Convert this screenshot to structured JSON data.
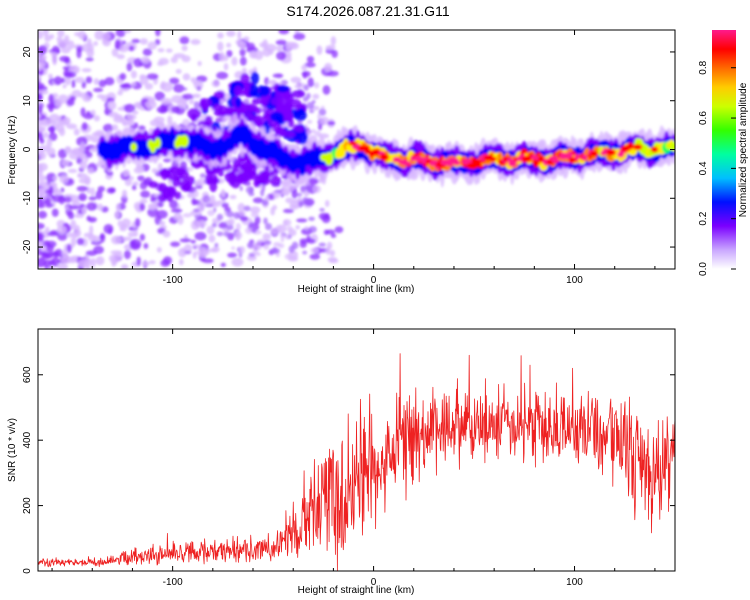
{
  "title": "S174.2026.087.21.31.G11",
  "colors": {
    "snr_line": "#ee2222",
    "spectro_strong": "#ff1a1a",
    "spectro_mid": "#33dd33",
    "spectro_low": "#6a00ff",
    "spectro_faint": "#d8b8ff"
  },
  "chart_data": [
    {
      "type": "heatmap",
      "name": "spectrogram",
      "xlabel": "Height of straight line (km)",
      "ylabel": "Frequency (Hz)",
      "xlim": [
        -167,
        150
      ],
      "ylim": [
        -24.5,
        24.5
      ],
      "x_ticks": [
        -100,
        0,
        100
      ],
      "y_ticks": [
        -20,
        -10,
        0,
        10,
        20
      ],
      "x_tick_labels": [
        "-100",
        "0",
        "100"
      ],
      "y_tick_labels": [
        "-20",
        "-10",
        "0",
        "10",
        "20"
      ],
      "colorbar": {
        "label": "Normalized spectral amplitude",
        "range": [
          0,
          0.95
        ],
        "ticks": [
          0.0,
          0.2,
          0.4,
          0.6,
          0.8
        ],
        "tick_labels": [
          "0.0",
          "0.2",
          "0.4",
          "0.6",
          "0.8"
        ],
        "colormap": [
          "#ffffff",
          "#7a00ff",
          "#0000ff",
          "#00ccff",
          "#00ff66",
          "#ccff00",
          "#ffee00",
          "#ff8800",
          "#ff0000",
          "#ff1a8c"
        ]
      },
      "ridge": {
        "x": [
          -130,
          -110,
          -95,
          -80,
          -65,
          -50,
          -35,
          -20,
          -10,
          -5,
          0,
          10,
          20,
          30,
          40,
          50,
          60,
          70,
          80,
          90,
          100,
          110,
          120,
          130,
          140,
          150
        ],
        "freq": [
          0,
          1,
          2,
          0,
          3,
          -1,
          -3,
          -1,
          0.5,
          1,
          -1,
          -2,
          -2,
          -2.5,
          -3,
          -2.5,
          -2,
          -2,
          -2,
          -2,
          -1.5,
          -1,
          -0.5,
          0,
          0,
          0.5
        ],
        "amplitude": [
          0.35,
          0.45,
          0.4,
          0.35,
          0.3,
          0.3,
          0.35,
          0.5,
          0.75,
          0.85,
          0.7,
          0.8,
          0.85,
          0.9,
          0.85,
          0.8,
          0.75,
          0.8,
          0.85,
          0.8,
          0.8,
          0.75,
          0.7,
          0.65,
          0.6,
          0.55
        ]
      }
    },
    {
      "type": "line",
      "name": "snr",
      "xlabel": "Height of straight line (km)",
      "ylabel": "SNR (10 * v/v)",
      "xlim": [
        -167,
        150
      ],
      "ylim": [
        0,
        740
      ],
      "x_ticks": [
        -100,
        0,
        100
      ],
      "y_ticks": [
        0,
        200,
        400,
        600
      ],
      "x_tick_labels": [
        "-100",
        "0",
        "100"
      ],
      "y_tick_labels": [
        "0",
        "200",
        "400",
        "600"
      ],
      "envelope": {
        "x": [
          -167,
          -140,
          -120,
          -100,
          -80,
          -60,
          -45,
          -40,
          -35,
          -25,
          -15,
          -5,
          5,
          15,
          25,
          40,
          60,
          80,
          100,
          115,
          125,
          135,
          145,
          150
        ],
        "mean": [
          25,
          25,
          40,
          55,
          60,
          65,
          80,
          110,
          160,
          200,
          200,
          260,
          340,
          400,
          420,
          440,
          450,
          450,
          430,
          420,
          390,
          330,
          300,
          380
        ],
        "spread": [
          12,
          14,
          25,
          35,
          35,
          40,
          55,
          90,
          140,
          170,
          190,
          200,
          170,
          160,
          130,
          120,
          120,
          130,
          120,
          120,
          150,
          200,
          170,
          150
        ]
      }
    }
  ]
}
